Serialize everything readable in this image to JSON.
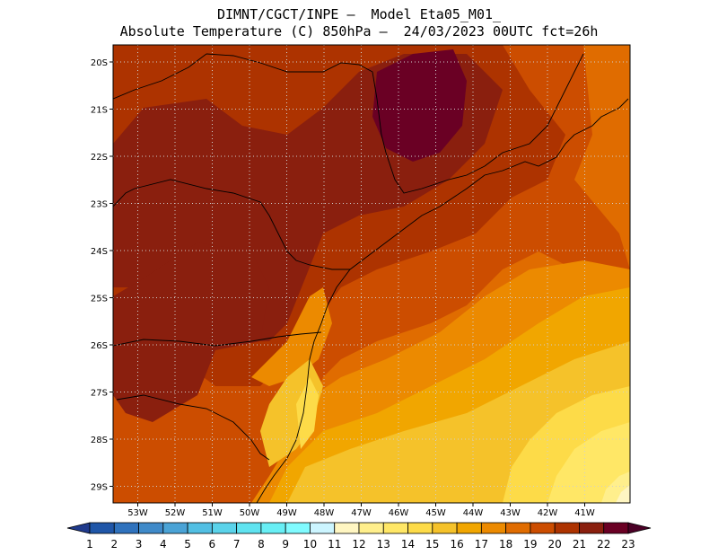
{
  "header": {
    "line1": "DIMNT/CGCT/INPE –  Model Eta05_M01_",
    "line2": "Absolute Temperature (C) 850hPa –  24/03/2023 00UTC fct=26h"
  },
  "axes": {
    "lat_labels": [
      "20S",
      "21S",
      "22S",
      "23S",
      "24S",
      "25S",
      "26S",
      "27S",
      "28S",
      "29S"
    ],
    "lon_labels": [
      "53W",
      "52W",
      "51W",
      "50W",
      "49W",
      "48W",
      "47W",
      "46W",
      "45W",
      "44W",
      "43W",
      "42W",
      "41W"
    ]
  },
  "colorbar": {
    "labels": [
      "1",
      "2",
      "3",
      "4",
      "5",
      "6",
      "7",
      "8",
      "9",
      "10",
      "11",
      "12",
      "13",
      "14",
      "15",
      "16",
      "17",
      "18",
      "19",
      "20",
      "21",
      "22",
      "23"
    ],
    "colors": [
      "#1f3a8c",
      "#1f56a8",
      "#2f72bd",
      "#3f8ac9",
      "#4aa3d6",
      "#52bfe3",
      "#5ad3ea",
      "#5fe3f0",
      "#68eff5",
      "#80fbff",
      "#ccf5ff",
      "#fff6c2",
      "#ffef8c",
      "#ffe766",
      "#fddb48",
      "#f5c22a",
      "#f1a600",
      "#ec8a00",
      "#e06c00",
      "#cc4d00",
      "#ad3300",
      "#8a1f0e",
      "#6a0024",
      "#4b0026"
    ]
  },
  "colors": {
    "t17": "#f1a600",
    "t18": "#ec8a00",
    "t19": "#e06c00",
    "t20": "#cc4d00",
    "t21": "#ad3300",
    "t22": "#8a1f0e",
    "t23": "#6a0024",
    "t15": "#fddb48",
    "t16": "#f5c22a",
    "t14": "#ffe766",
    "t13": "#ffef8c",
    "t12": "#fff6c2"
  }
}
